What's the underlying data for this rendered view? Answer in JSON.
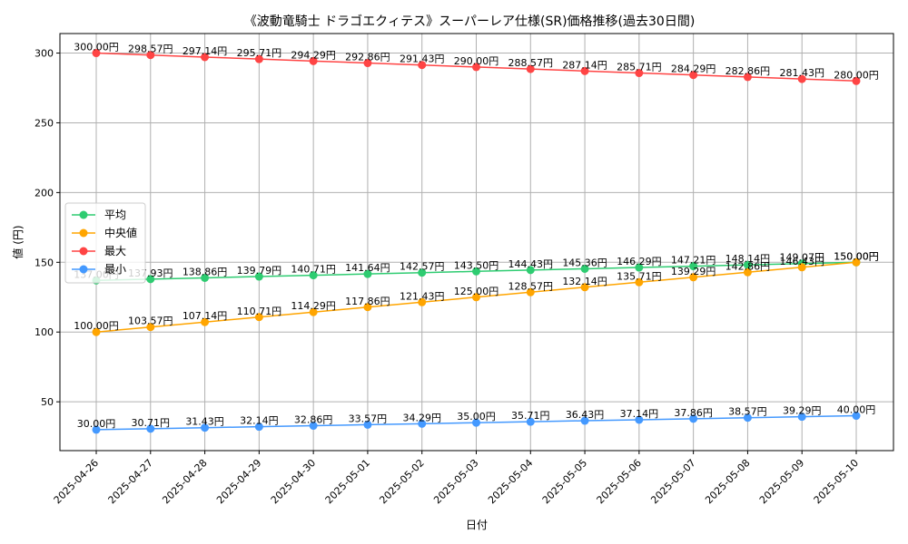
{
  "chart_data": {
    "type": "line",
    "title": "《波動竜騎士 ドラゴエクィテス》スーパーレア仕様(SR)価格推移(過去30日間)",
    "xlabel": "日付",
    "ylabel": "値 (円)",
    "ylim": [
      15,
      314
    ],
    "yticks": [
      50,
      100,
      150,
      200,
      250,
      300
    ],
    "grid": true,
    "legend_position": "center-left",
    "label_suffix": "円",
    "categories": [
      "2025-04-26",
      "2025-04-27",
      "2025-04-28",
      "2025-04-29",
      "2025-04-30",
      "2025-05-01",
      "2025-05-02",
      "2025-05-03",
      "2025-05-04",
      "2025-05-05",
      "2025-05-06",
      "2025-05-07",
      "2025-05-08",
      "2025-05-09",
      "2025-05-10"
    ],
    "series": [
      {
        "name": "平均",
        "color": "#2ecc71",
        "values": [
          137.0,
          137.93,
          138.86,
          139.79,
          140.71,
          141.64,
          142.57,
          143.5,
          144.43,
          145.36,
          146.29,
          147.21,
          148.14,
          149.07,
          150.0
        ],
        "labels": [
          "137.00円",
          "137.93円",
          "138.86円",
          "139.79円",
          "140.71円",
          "141.64円",
          "142.57円",
          "143.50円",
          "144.43円",
          "145.36円",
          "146.29円",
          "147.21円",
          "148.14円",
          "149.07円",
          "150.00円"
        ]
      },
      {
        "name": "中央値",
        "color": "#ffa500",
        "values": [
          100.0,
          103.57,
          107.14,
          110.71,
          114.29,
          117.86,
          121.43,
          125.0,
          128.57,
          132.14,
          135.71,
          139.29,
          142.86,
          146.43,
          150.0
        ],
        "labels": [
          "100.00円",
          "103.57円",
          "107.14円",
          "110.71円",
          "114.29円",
          "117.86円",
          "121.43円",
          "125.00円",
          "128.57円",
          "132.14円",
          "135.71円",
          "139.29円",
          "142.86円",
          "146.43円",
          "150.00円"
        ]
      },
      {
        "name": "最大",
        "color": "#ff4444",
        "values": [
          300.0,
          298.57,
          297.14,
          295.71,
          294.29,
          292.86,
          291.43,
          290.0,
          288.57,
          287.14,
          285.71,
          284.29,
          282.86,
          281.43,
          280.0
        ],
        "labels": [
          "300.00円",
          "298.57円",
          "297.14円",
          "295.71円",
          "294.29円",
          "292.86円",
          "291.43円",
          "290.00円",
          "288.57円",
          "287.14円",
          "285.71円",
          "284.29円",
          "282.86円",
          "281.43円",
          "280.00円"
        ]
      },
      {
        "name": "最小",
        "color": "#4499ff",
        "values": [
          30.0,
          30.71,
          31.43,
          32.14,
          32.86,
          33.57,
          34.29,
          35.0,
          35.71,
          36.43,
          37.14,
          37.86,
          38.57,
          39.29,
          40.0
        ],
        "labels": [
          "30.00円",
          "30.71円",
          "31.43円",
          "32.14円",
          "32.86円",
          "33.57円",
          "34.29円",
          "35.00円",
          "35.71円",
          "36.43円",
          "37.14円",
          "37.86円",
          "38.57円",
          "39.29円",
          "40.00円"
        ]
      }
    ]
  }
}
